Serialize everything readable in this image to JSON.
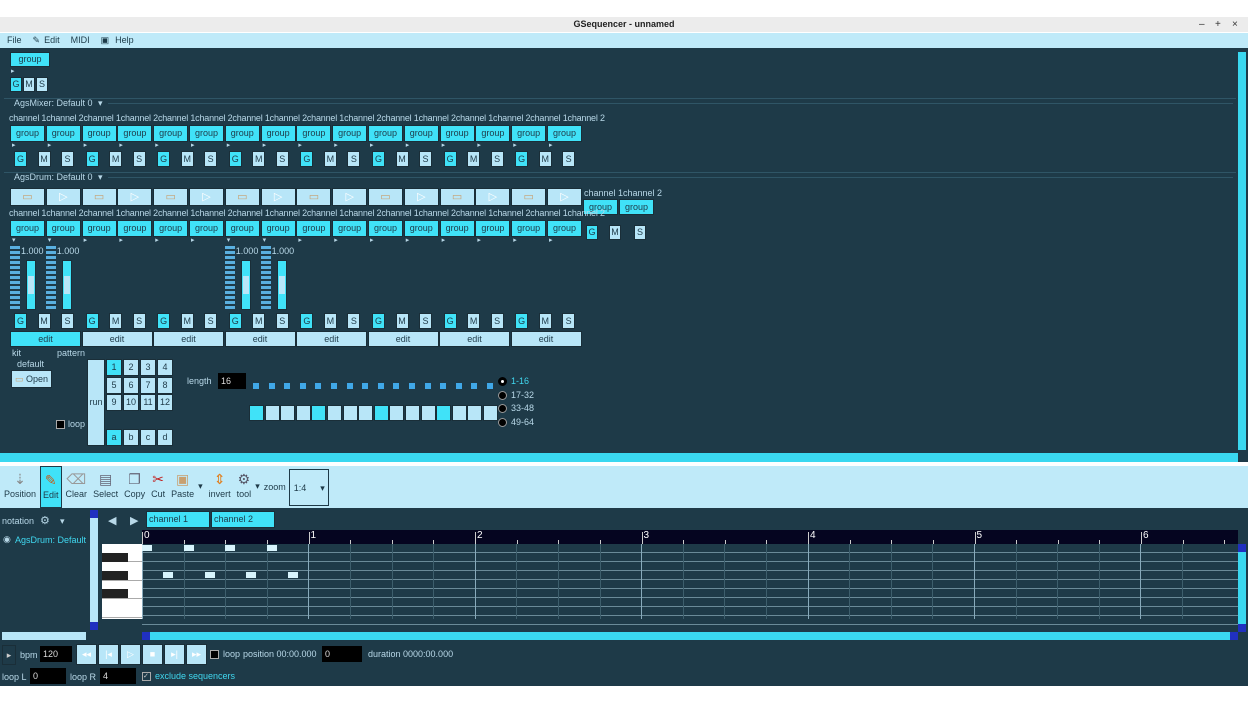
{
  "window": {
    "title": "GSequencer - unnamed",
    "controls": [
      "–",
      "+",
      "×"
    ]
  },
  "menu": [
    "File",
    "Edit",
    "MIDI",
    "Help"
  ],
  "top_group": {
    "label": "group",
    "gms": [
      "G",
      "M",
      "S"
    ]
  },
  "mixer": {
    "label": "AgsMixer: Default 0",
    "channels": [
      "channel 1",
      "channel 2"
    ],
    "group_label": "group",
    "gms": [
      "G",
      "M",
      "S"
    ],
    "group_count": 16,
    "gms_count": 8
  },
  "drum": {
    "label": "AgsDrum: Default 0",
    "channel_labels": [
      "channel 1",
      "channel 2"
    ],
    "group_label": "group",
    "extra_channels": "channel 1channel 2",
    "meter_value": "1.000",
    "edit_label": "edit",
    "edit_count": 8,
    "kit": {
      "label": "kit",
      "name": "default",
      "open": "Open"
    },
    "pattern": {
      "label": "pattern",
      "run": "run",
      "loop": "loop",
      "length_label": "length",
      "length": "16",
      "numbers": [
        "1",
        "2",
        "3",
        "4",
        "5",
        "6",
        "7",
        "8",
        "9",
        "10",
        "11",
        "12"
      ],
      "letters": [
        "a",
        "b",
        "c",
        "d"
      ],
      "selected_number": "1",
      "selected_letter": "a",
      "ranges": [
        "1-16",
        "17-32",
        "33-48",
        "49-64"
      ],
      "selected_range": "1-16",
      "active_steps": [
        1,
        5,
        9,
        13
      ]
    }
  },
  "toolbar": {
    "items": [
      "Position",
      "Edit",
      "Clear",
      "Select",
      "Copy",
      "Cut",
      "Paste",
      "invert",
      "tool"
    ],
    "active": "Edit",
    "zoom_label": "zoom",
    "zoom_value": "1:4"
  },
  "notation": {
    "label": "notation",
    "machine": "AgsDrum: Default 0",
    "tabs": [
      "channel 1",
      "channel 2"
    ],
    "ruler": [
      "0",
      "1",
      "2",
      "3",
      "4",
      "5",
      "6"
    ]
  },
  "transport": {
    "bpm_label": "bpm",
    "bpm": "120",
    "loop": "loop",
    "position_label": "position 00:00.000",
    "position": "0",
    "duration": "duration 0000:00.000",
    "loop_l_label": "loop L",
    "loop_l": "0",
    "loop_r_label": "loop R",
    "loop_r": "4",
    "exclude": "exclude sequencers",
    "exclude_checked": true
  },
  "colors": {
    "background": "#1e3a48",
    "button": "#b8e6f8",
    "active": "#40e2f8"
  }
}
